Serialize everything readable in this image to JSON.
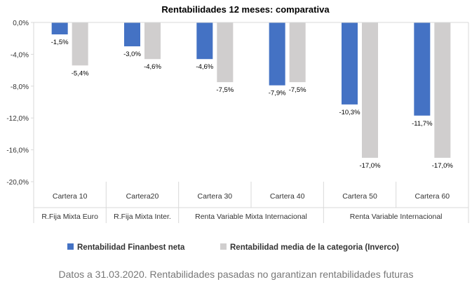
{
  "chart_data": {
    "type": "bar",
    "title": "Rentabilidades 12 meses: comparativa",
    "categories": [
      "Cartera 10",
      "Cartera20",
      "Cartera 30",
      "Cartera 40",
      "Cartera 50",
      "Cartera 60"
    ],
    "groups": [
      {
        "label": "R.Fija Mixta Euro",
        "categories": [
          "Cartera 10"
        ]
      },
      {
        "label": "R.Fija Mixta Inter.",
        "categories": [
          "Cartera20"
        ]
      },
      {
        "label": "Renta Variable Mixta Internacional",
        "categories": [
          "Cartera 30",
          "Cartera 40"
        ]
      },
      {
        "label": "Renta Variable Internacional",
        "categories": [
          "Cartera 50",
          "Cartera 60"
        ]
      }
    ],
    "series": [
      {
        "name": "Rentabilidad Finanbest neta",
        "color": "#4472C4",
        "values": [
          -1.5,
          -3.0,
          -4.6,
          -7.9,
          -10.3,
          -11.7
        ],
        "labels": [
          "-1,5%",
          "-3,0%",
          "-4,6%",
          "-7,9%",
          "-10,3%",
          "-11,7%"
        ]
      },
      {
        "name": "Rentabilidad media de la categoria (Inverco)",
        "color": "#D0CECE",
        "values": [
          -5.4,
          -4.6,
          -7.5,
          -7.5,
          -17.0,
          -17.0
        ],
        "labels": [
          "-5,4%",
          "-4,6%",
          "-7,5%",
          "-7,5%",
          "-17,0%",
          "-17,0%"
        ]
      }
    ],
    "yticks": [
      0,
      -4,
      -8,
      -12,
      -16,
      -20
    ],
    "ytick_labels": [
      "0,0%",
      "-4,0%",
      "-8,0%",
      "-12,0%",
      "-16,0%",
      "-20,0%"
    ],
    "ylim": [
      -20,
      0
    ],
    "xlabel": "",
    "ylabel": "",
    "legend_position": "bottom"
  },
  "footnote": "Datos a 31.03.2020. Rentabilidades pasadas no garantizan rentabilidades futuras"
}
